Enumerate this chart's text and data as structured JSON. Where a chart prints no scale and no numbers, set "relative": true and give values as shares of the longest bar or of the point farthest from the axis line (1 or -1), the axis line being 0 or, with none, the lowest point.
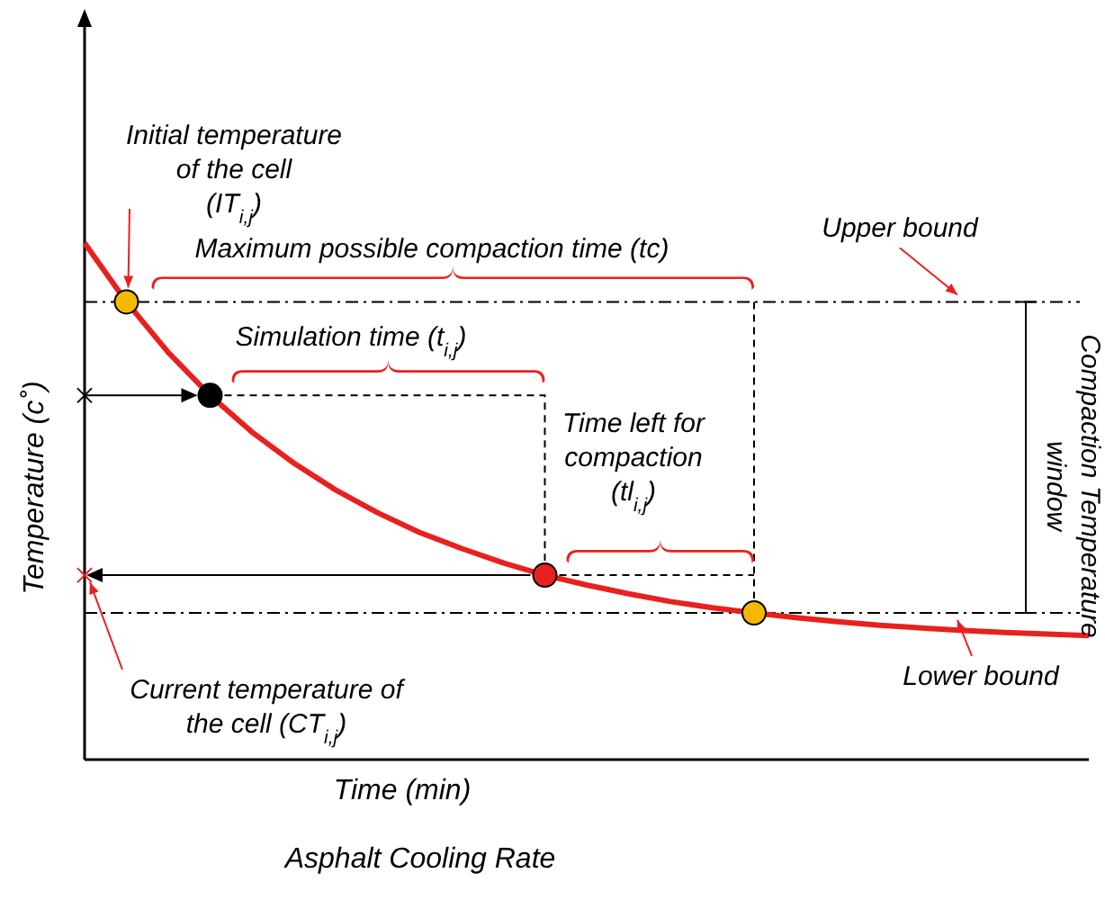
{
  "chart_data": {
    "type": "line",
    "relative": true,
    "title": "Asphalt Cooling Rate",
    "xlabel": "Time (min)",
    "ylabel": "Temperature (c˚)",
    "categories": [
      null,
      null,
      null,
      null,
      null,
      null,
      null,
      null,
      null,
      null,
      null,
      null,
      null,
      null,
      null,
      null,
      null,
      null,
      null,
      null,
      null,
      null,
      null,
      null,
      null
    ],
    "series": [
      {
        "color": "#e8211f",
        "values": [
          1.0,
          0.886,
          0.788,
          0.705,
          0.634,
          0.574,
          0.522,
          0.478,
          0.44,
          0.409,
          0.381,
          0.357,
          0.338,
          0.321,
          0.306,
          0.294,
          0.284,
          0.275,
          0.267,
          0.26,
          0.255,
          0.25,
          0.246,
          0.243,
          0.24
        ]
      }
    ],
    "annotations": [
      "Initial temperature of the cell (IT$_{i,j}$)",
      "Maximum possible compaction time (tc)",
      "Simulation time (t$_{i,j}$)",
      "Time left for compaction (tl$_{i,j}$)",
      "Current temperature of the cell (CT$_{i,j}$)",
      "Compaction Temperature window"
    ],
    "ref_lines": [
      {
        "axis": "y",
        "value": 0.886,
        "label": "Upper bound",
        "color": "#000000",
        "line_style": "dashed"
      },
      {
        "axis": "y",
        "value": 0.284,
        "label": "Lower bound",
        "color": "#000000",
        "line_style": "dashed"
      }
    ]
  }
}
